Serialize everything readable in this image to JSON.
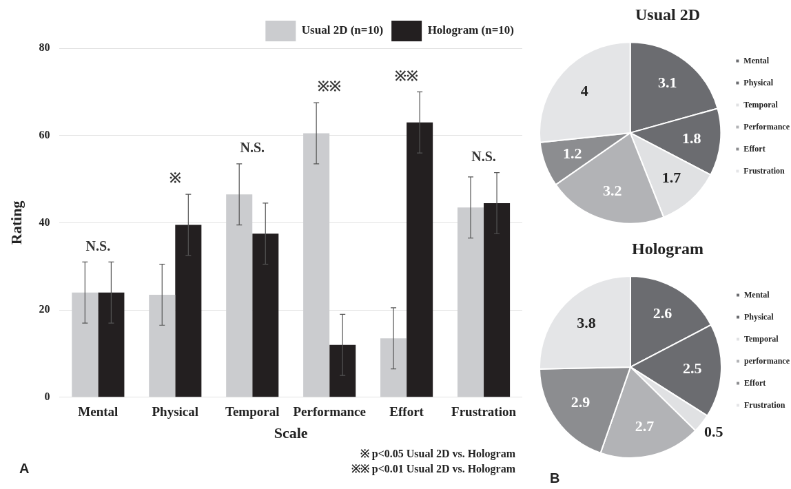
{
  "chart_data": [
    {
      "type": "bar",
      "xlabel": "Scale",
      "ylabel": "Rating",
      "categories": [
        "Mental",
        "Physical",
        "Temporal",
        "Performance",
        "Effort",
        "Frustration"
      ],
      "series": [
        {
          "name": "Usual 2D (n=10)",
          "color": "#cbcccf",
          "values": [
            24,
            23.5,
            46.5,
            60.5,
            13.5,
            43.5
          ],
          "errors": [
            7,
            7,
            7,
            7,
            7,
            7
          ]
        },
        {
          "name": "Hologram (n=10)",
          "color": "#231f20",
          "values": [
            24,
            39.5,
            37.5,
            12,
            63,
            44.5
          ],
          "errors": [
            7,
            7,
            7,
            7,
            7,
            7
          ]
        }
      ],
      "ylim": [
        0,
        80
      ],
      "yticks": [
        0,
        20,
        40,
        60,
        80
      ],
      "grid": "y",
      "legend": "top right",
      "annotations": [
        "N.S.",
        "※",
        "N.S.",
        "※※",
        "※※",
        "N.S.",
        "※ p<0.05 Usual 2D vs. Hologram",
        "※※ p<0.01 Usual 2D vs. Hologram",
        "A"
      ]
    },
    {
      "type": "pie",
      "title": "Usual 2D",
      "categories": [
        "Mental",
        "Physical",
        "Temporal",
        "Performance",
        "Effort",
        "Frustration"
      ],
      "values": [
        3.1,
        1.8,
        1.7,
        3.2,
        1.2,
        4
      ],
      "colors": [
        "#6b6c70",
        "#6b6c70",
        "#e0e1e3",
        "#b2b3b6",
        "#8c8d90",
        "#e4e5e7"
      ],
      "data_labels": true,
      "legend": "right"
    },
    {
      "type": "pie",
      "title": "Hologram",
      "categories": [
        "Mental",
        "Physical",
        "Temporal",
        "performance",
        "Effort",
        "Frustration"
      ],
      "values": [
        2.6,
        2.5,
        0.5,
        2.7,
        2.9,
        3.8
      ],
      "colors": [
        "#6b6c70",
        "#6b6c70",
        "#e0e1e3",
        "#b2b3b6",
        "#8c8d90",
        "#e4e5e7"
      ],
      "data_labels": true,
      "legend": "right",
      "annotations": [
        "B"
      ]
    }
  ]
}
